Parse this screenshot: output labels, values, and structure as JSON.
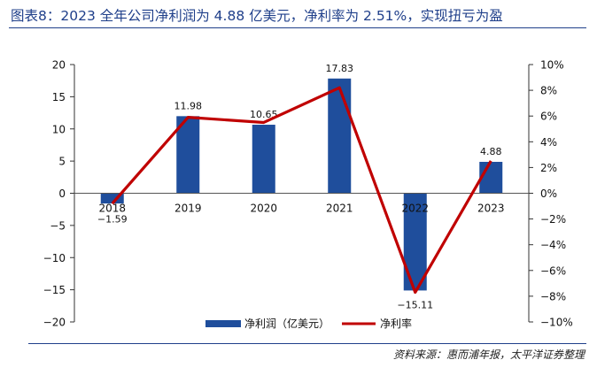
{
  "title": "图表8：2023 全年公司净利润为 4.88 亿美元，净利率为 2.51%，实现扭亏为盈",
  "source": "资料来源：惠而浦年报，太平洋证券整理",
  "chart_data": {
    "type": "bar+line",
    "categories": [
      "2018",
      "2019",
      "2020",
      "2021",
      "2022",
      "2023"
    ],
    "series": [
      {
        "name": "净利润（亿美元）",
        "type": "bar",
        "axis": "left",
        "color": "#1f4e9c",
        "values": [
          -1.59,
          11.98,
          10.65,
          17.83,
          -15.11,
          4.88
        ],
        "labels": [
          "−1.59",
          "11.98",
          "10.65",
          "17.83",
          "−15.11",
          "4.88"
        ]
      },
      {
        "name": "净利率",
        "type": "line",
        "axis": "right",
        "color": "#c00000",
        "values": [
          -0.8,
          5.9,
          5.5,
          8.2,
          -7.7,
          2.51
        ]
      }
    ],
    "left_axis": {
      "ylim": [
        -20,
        20
      ],
      "ticks": [
        20,
        15,
        10,
        5,
        0,
        -5,
        -10,
        -15,
        -20
      ],
      "tick_labels": [
        "20",
        "15",
        "10",
        "5",
        "0",
        "−5",
        "−10",
        "−15",
        "−20"
      ]
    },
    "right_axis": {
      "ylim": [
        -10,
        10
      ],
      "ticks": [
        10,
        8,
        6,
        4,
        2,
        0,
        -2,
        -4,
        -6,
        -8,
        -10
      ],
      "tick_labels": [
        "10%",
        "8%",
        "6%",
        "4%",
        "2%",
        "0%",
        "−2%",
        "−4%",
        "−6%",
        "−8%",
        "−10%"
      ]
    },
    "grid": false,
    "legend": "bottom-center"
  }
}
